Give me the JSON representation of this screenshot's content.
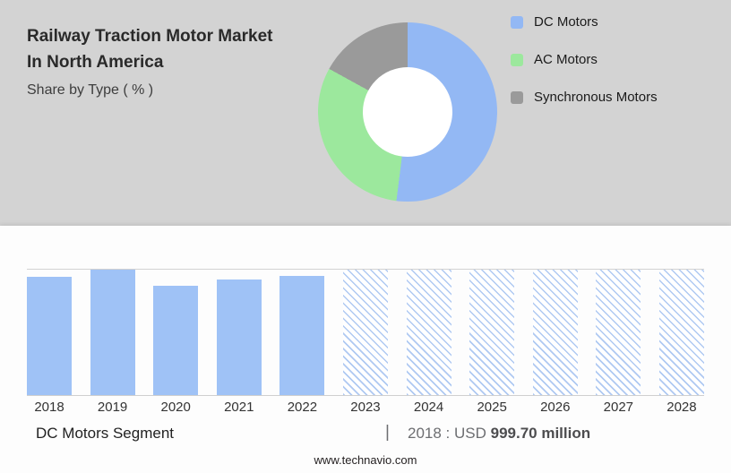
{
  "page": {
    "title_line1": "Railway Traction Motor Market",
    "title_line2": "In North America",
    "subtitle": "Share by Type ( % )",
    "footer": "www.technavio.com"
  },
  "colors": {
    "top_background": "#d3d3d3",
    "dc_blue": "#93b8f4",
    "ac_green": "#9ce89d",
    "sync_gray": "#9a9a9a",
    "bar_solid": "#9fc2f6"
  },
  "legend": [
    {
      "label": "DC Motors",
      "color": "#93b8f4"
    },
    {
      "label": "AC Motors",
      "color": "#9ce89d"
    },
    {
      "label": "Synchronous Motors",
      "color": "#9a9a9a"
    }
  ],
  "bottom_bar": {
    "segment_label": "DC Motors Segment",
    "separator": "|",
    "value_prefix": "2018 : USD ",
    "value_bold": "999.70 million"
  },
  "chart_data": [
    {
      "type": "pie",
      "donut": true,
      "title": "Share by Type ( % )",
      "labels": [
        "DC Motors",
        "AC Motors",
        "Synchronous Motors"
      ],
      "values": [
        52,
        31,
        17
      ],
      "colors": [
        "#93b8f4",
        "#9ce89d",
        "#9a9a9a"
      ],
      "legend_position": "right"
    },
    {
      "type": "bar",
      "title": "DC Motors Segment",
      "categories": [
        "2018",
        "2019",
        "2020",
        "2021",
        "2022",
        "2023",
        "2024",
        "2025",
        "2026",
        "2027",
        "2028"
      ],
      "values": [
        999.7,
        1060,
        925,
        975,
        1010,
        null,
        null,
        null,
        null,
        null,
        null
      ],
      "forecast_categories": [
        "2023",
        "2024",
        "2025",
        "2026",
        "2027",
        "2028"
      ],
      "labeled_point": {
        "year": "2018",
        "value_text": "USD 999.70 million"
      },
      "ylim": [
        0,
        1060
      ],
      "grid": "top-and-baseline-only"
    }
  ]
}
